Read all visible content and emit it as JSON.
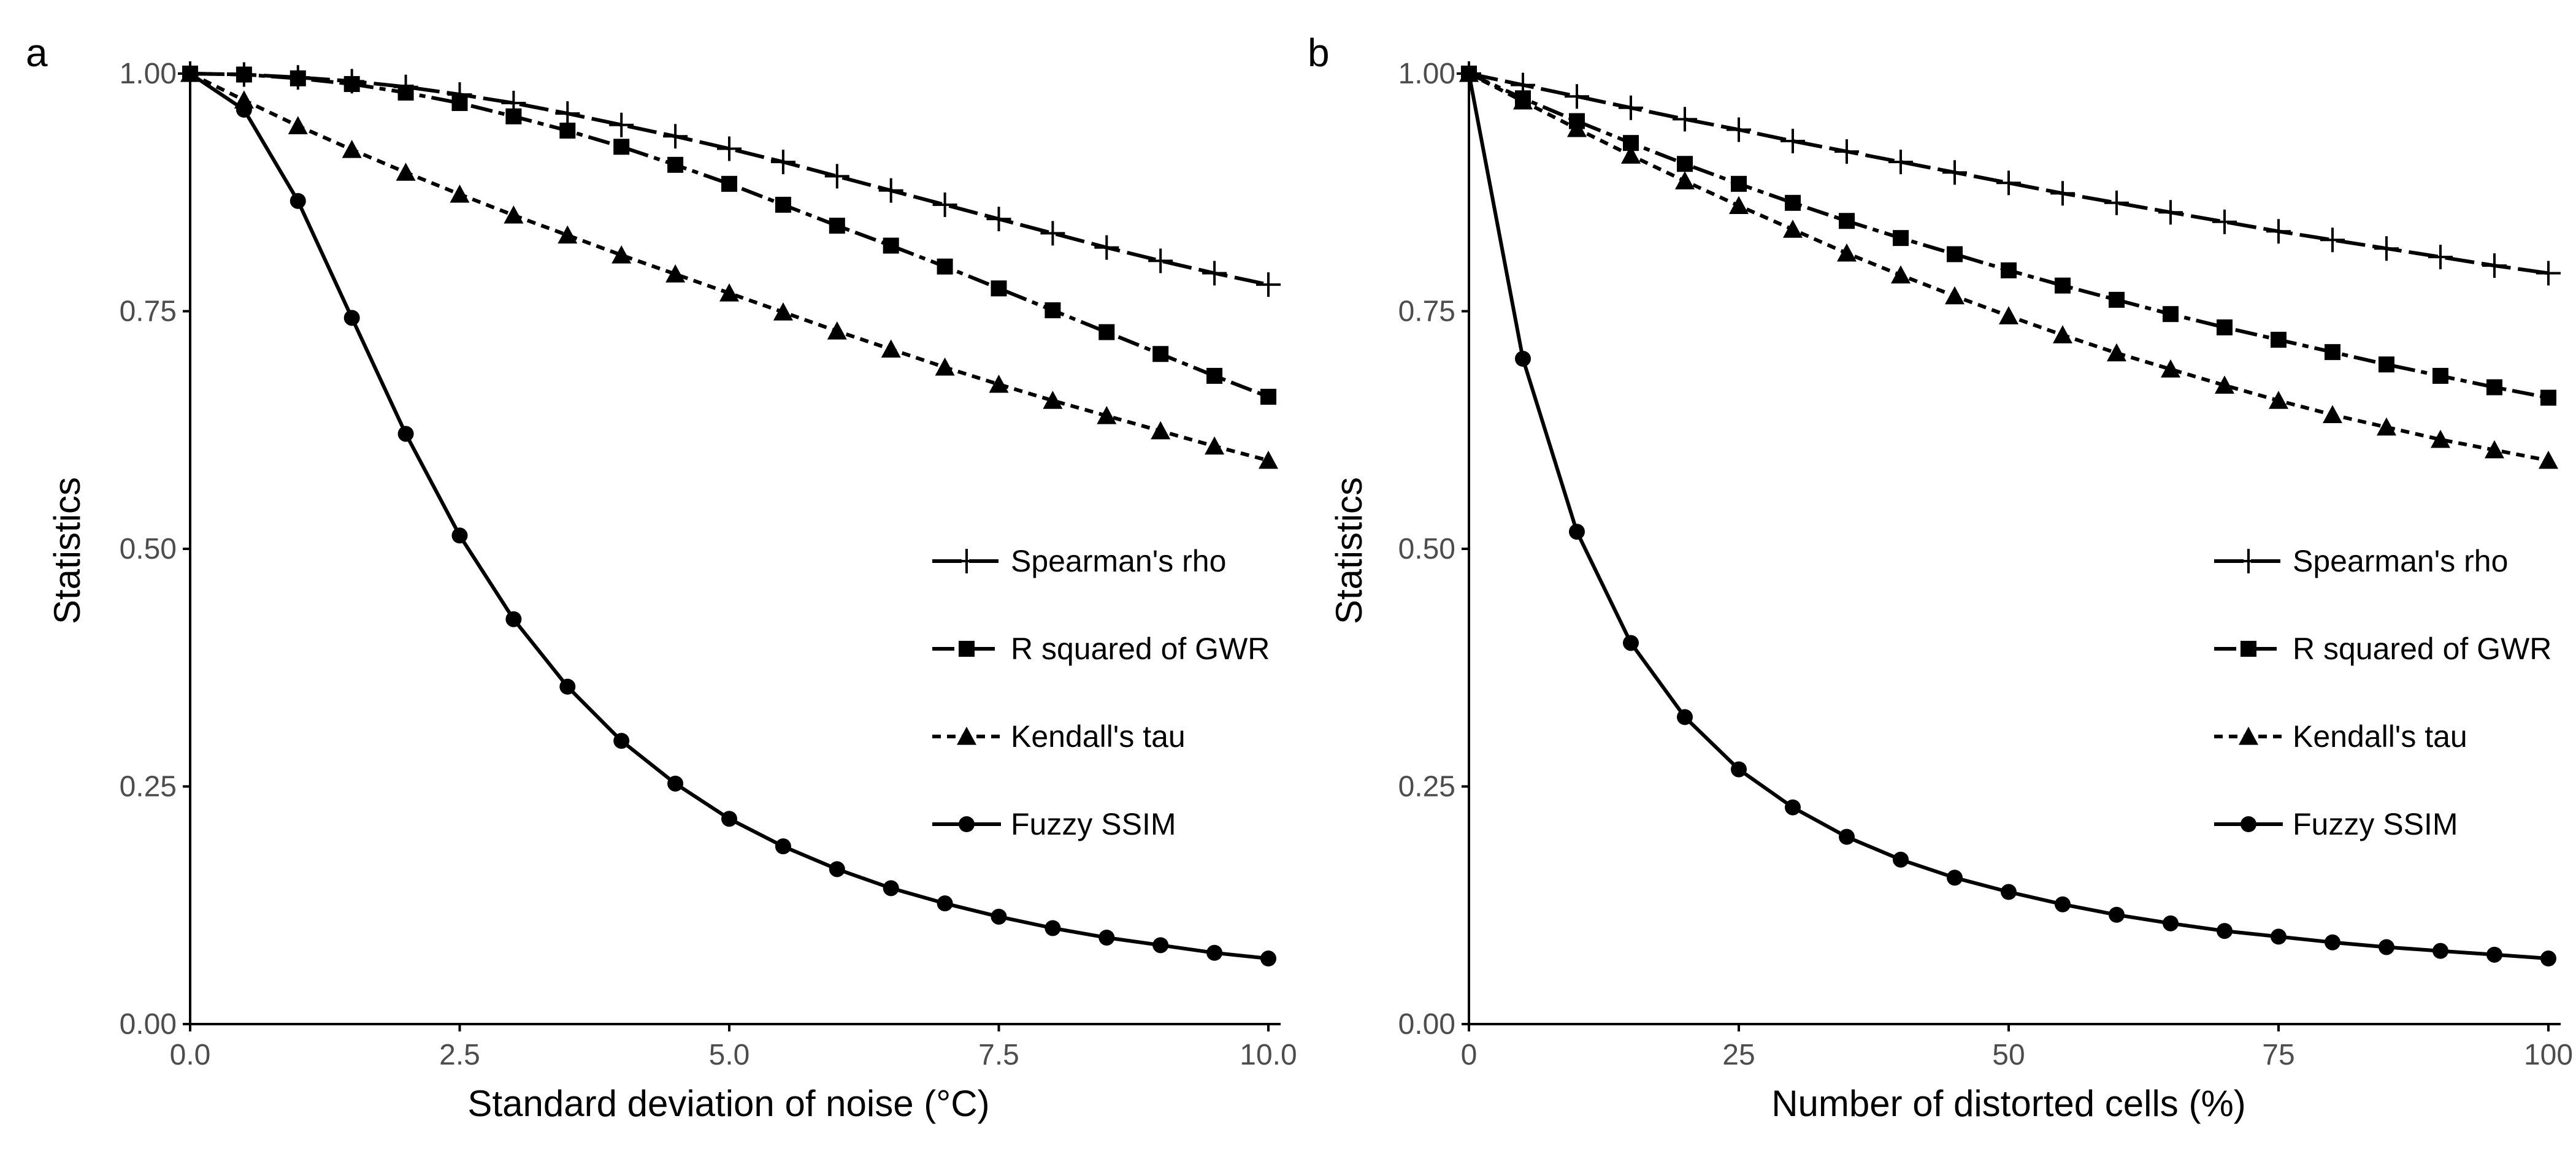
{
  "colors": {
    "line": "#000000",
    "text": "#000000",
    "tick_text": "#4d4d4d",
    "background": "#ffffff"
  },
  "legend": {
    "placement": "right",
    "entries": [
      {
        "label": "Spearman's rho",
        "marker": "plus",
        "line": "longdash"
      },
      {
        "label": "R squared of GWR",
        "marker": "square",
        "line": "dashdot"
      },
      {
        "label": "Kendall's tau",
        "marker": "triangle",
        "line": "dotted"
      },
      {
        "label": "Fuzzy SSIM",
        "marker": "circle",
        "line": "solid"
      }
    ]
  },
  "chart_data": [
    {
      "panel_label": "a",
      "type": "line",
      "xlabel": "Standard deviation of noise (°C)",
      "ylabel": "Statistics",
      "xlim": [
        0,
        10
      ],
      "ylim": [
        0,
        1
      ],
      "grid": false,
      "xticks": [
        0,
        2.5,
        5,
        7.5,
        10
      ],
      "xtick_labels": [
        "0.0",
        "2.5",
        "5.0",
        "7.5",
        "10.0"
      ],
      "yticks": [
        0,
        0.25,
        0.5,
        0.75,
        1
      ],
      "ytick_labels": [
        "0.00",
        "0.25",
        "0.50",
        "0.75",
        "1.00"
      ],
      "x": [
        0,
        0.5,
        1,
        1.5,
        2,
        2.5,
        3,
        3.5,
        4,
        4.5,
        5,
        5.5,
        6,
        6.5,
        7,
        7.5,
        8,
        8.5,
        9,
        9.5,
        10
      ],
      "series": [
        {
          "name": "Spearman's rho",
          "values": [
            1.0,
            0.999,
            0.996,
            0.992,
            0.986,
            0.978,
            0.969,
            0.958,
            0.946,
            0.934,
            0.921,
            0.907,
            0.892,
            0.877,
            0.862,
            0.847,
            0.832,
            0.817,
            0.803,
            0.79,
            0.778
          ]
        },
        {
          "name": "R squared of GWR",
          "values": [
            1.0,
            0.999,
            0.995,
            0.989,
            0.98,
            0.969,
            0.955,
            0.94,
            0.923,
            0.904,
            0.884,
            0.862,
            0.84,
            0.819,
            0.797,
            0.774,
            0.751,
            0.728,
            0.705,
            0.682,
            0.66
          ]
        },
        {
          "name": "Kendall's tau",
          "values": [
            1.0,
            0.972,
            0.945,
            0.92,
            0.896,
            0.873,
            0.851,
            0.83,
            0.809,
            0.789,
            0.769,
            0.749,
            0.729,
            0.71,
            0.691,
            0.673,
            0.656,
            0.64,
            0.624,
            0.608,
            0.593
          ]
        },
        {
          "name": "Fuzzy SSIM",
          "values": [
            1.0,
            0.962,
            0.866,
            0.743,
            0.621,
            0.514,
            0.426,
            0.355,
            0.298,
            0.253,
            0.216,
            0.187,
            0.163,
            0.143,
            0.127,
            0.113,
            0.101,
            0.091,
            0.083,
            0.075,
            0.069
          ]
        }
      ]
    },
    {
      "panel_label": "b",
      "type": "line",
      "xlabel": "Number of distorted cells (%)",
      "ylabel": "Statistics",
      "xlim": [
        0,
        100
      ],
      "ylim": [
        0,
        1
      ],
      "grid": false,
      "xticks": [
        0,
        25,
        50,
        75,
        100
      ],
      "xtick_labels": [
        "0",
        "25",
        "50",
        "75",
        "100"
      ],
      "yticks": [
        0,
        0.25,
        0.5,
        0.75,
        1
      ],
      "ytick_labels": [
        "0.00",
        "0.25",
        "0.50",
        "0.75",
        "1.00"
      ],
      "x": [
        0,
        5,
        10,
        15,
        20,
        25,
        30,
        35,
        40,
        45,
        50,
        55,
        60,
        65,
        70,
        75,
        80,
        85,
        90,
        95,
        100
      ],
      "series": [
        {
          "name": "Spearman's rho",
          "values": [
            1.0,
            0.988,
            0.976,
            0.964,
            0.952,
            0.941,
            0.929,
            0.918,
            0.907,
            0.896,
            0.885,
            0.874,
            0.864,
            0.854,
            0.844,
            0.834,
            0.825,
            0.816,
            0.807,
            0.798,
            0.79
          ]
        },
        {
          "name": "R squared of GWR",
          "values": [
            1.0,
            0.974,
            0.95,
            0.927,
            0.905,
            0.884,
            0.864,
            0.845,
            0.827,
            0.81,
            0.793,
            0.777,
            0.762,
            0.747,
            0.733,
            0.72,
            0.707,
            0.694,
            0.682,
            0.67,
            0.659
          ]
        },
        {
          "name": "Kendall's tau",
          "values": [
            1.0,
            0.971,
            0.942,
            0.914,
            0.887,
            0.861,
            0.836,
            0.811,
            0.788,
            0.766,
            0.745,
            0.725,
            0.706,
            0.689,
            0.672,
            0.656,
            0.641,
            0.628,
            0.615,
            0.604,
            0.593
          ]
        },
        {
          "name": "Fuzzy SSIM",
          "values": [
            1.0,
            0.7,
            0.518,
            0.401,
            0.323,
            0.268,
            0.228,
            0.197,
            0.173,
            0.154,
            0.139,
            0.126,
            0.115,
            0.106,
            0.098,
            0.092,
            0.086,
            0.081,
            0.077,
            0.073,
            0.069
          ]
        }
      ]
    }
  ]
}
